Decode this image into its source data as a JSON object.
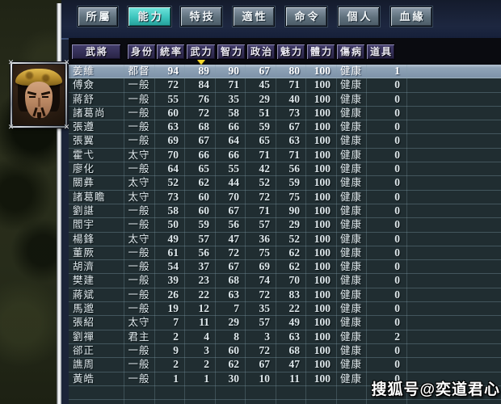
{
  "tabs": {
    "items": [
      "所屬",
      "能力",
      "特技",
      "適性",
      "命令",
      "個人",
      "血緣"
    ],
    "active_index": 1
  },
  "table": {
    "headers": [
      "武將",
      "身份",
      "統率",
      "武力",
      "智力",
      "政治",
      "魅力",
      "體力",
      "傷病",
      "道具"
    ],
    "sort_column": "武力",
    "selected_row_index": 0,
    "rows": [
      [
        "姜維",
        "都督",
        "94",
        "89",
        "90",
        "67",
        "80",
        "100",
        "健康",
        "1"
      ],
      [
        "傅僉",
        "一般",
        "72",
        "84",
        "71",
        "45",
        "71",
        "100",
        "健康",
        "0"
      ],
      [
        "蔣舒",
        "一般",
        "55",
        "76",
        "35",
        "29",
        "40",
        "100",
        "健康",
        "0"
      ],
      [
        "諸葛尚",
        "一般",
        "60",
        "72",
        "58",
        "51",
        "73",
        "100",
        "健康",
        "0"
      ],
      [
        "張遵",
        "一般",
        "63",
        "68",
        "66",
        "59",
        "67",
        "100",
        "健康",
        "0"
      ],
      [
        "張翼",
        "一般",
        "69",
        "67",
        "64",
        "65",
        "63",
        "100",
        "健康",
        "0"
      ],
      [
        "霍弋",
        "太守",
        "70",
        "66",
        "66",
        "71",
        "71",
        "100",
        "健康",
        "0"
      ],
      [
        "廖化",
        "一般",
        "64",
        "65",
        "55",
        "42",
        "56",
        "100",
        "健康",
        "0"
      ],
      [
        "關彝",
        "太守",
        "52",
        "62",
        "44",
        "52",
        "59",
        "100",
        "健康",
        "0"
      ],
      [
        "諸葛瞻",
        "太守",
        "73",
        "60",
        "70",
        "72",
        "75",
        "100",
        "健康",
        "0"
      ],
      [
        "劉諶",
        "一般",
        "58",
        "60",
        "67",
        "71",
        "90",
        "100",
        "健康",
        "0"
      ],
      [
        "閻宇",
        "一般",
        "50",
        "59",
        "56",
        "57",
        "29",
        "100",
        "健康",
        "0"
      ],
      [
        "楊鋒",
        "太守",
        "49",
        "57",
        "47",
        "36",
        "52",
        "100",
        "健康",
        "0"
      ],
      [
        "董厥",
        "一般",
        "61",
        "56",
        "72",
        "75",
        "62",
        "100",
        "健康",
        "0"
      ],
      [
        "胡濟",
        "一般",
        "54",
        "37",
        "67",
        "69",
        "62",
        "100",
        "健康",
        "0"
      ],
      [
        "樊建",
        "一般",
        "39",
        "23",
        "68",
        "74",
        "70",
        "100",
        "健康",
        "0"
      ],
      [
        "蔣斌",
        "一般",
        "26",
        "22",
        "63",
        "72",
        "83",
        "100",
        "健康",
        "0"
      ],
      [
        "馬邈",
        "一般",
        "19",
        "12",
        "7",
        "35",
        "22",
        "100",
        "健康",
        "0"
      ],
      [
        "張紹",
        "太守",
        "7",
        "11",
        "29",
        "57",
        "49",
        "100",
        "健康",
        "0"
      ],
      [
        "劉禪",
        "君主",
        "2",
        "4",
        "8",
        "3",
        "63",
        "100",
        "健康",
        "2"
      ],
      [
        "郤正",
        "一般",
        "9",
        "3",
        "60",
        "72",
        "68",
        "100",
        "健康",
        "0"
      ],
      [
        "譙周",
        "一般",
        "2",
        "2",
        "62",
        "67",
        "47",
        "100",
        "健康",
        "0"
      ],
      [
        "黃皓",
        "一般",
        "1",
        "1",
        "30",
        "10",
        "11",
        "100",
        "健康",
        "0"
      ]
    ]
  },
  "portrait": {
    "officer": "姜維"
  },
  "watermark": "搜狐号@奕道君心",
  "colors": {
    "active_tab": "#3cc4bc",
    "selected_row": "#8fa3b7",
    "table_bg": "#202d31",
    "header_button_bg": "#332e55",
    "sort_arrow": "#f4d82c"
  }
}
